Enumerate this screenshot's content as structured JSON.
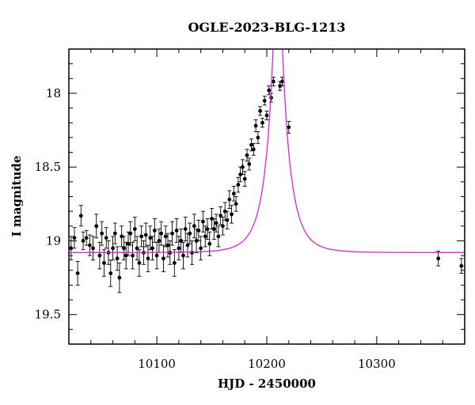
{
  "chart_data": {
    "type": "scatter",
    "title": "OGLE-2023-BLG-1213",
    "xlabel": "HJD - 2450000",
    "ylabel": "I magnitude",
    "xlim": [
      10020,
      10380
    ],
    "ylim": [
      19.7,
      17.7
    ],
    "y_inverted": true,
    "xticks_major": [
      10100,
      10200,
      10300
    ],
    "xtick_labels": [
      "10100",
      "10200",
      "10300"
    ],
    "yticks_major": [
      18,
      18.5,
      19,
      19.5
    ],
    "ytick_labels": [
      "18",
      "18.5",
      "19",
      "19.5"
    ],
    "grid": false,
    "legend": "none",
    "colors": {
      "data": "#000000",
      "model": "#e020e0",
      "frame": "#000000"
    },
    "model": {
      "name": "",
      "t0": 10210,
      "u0": 0.14,
      "tE": 17,
      "baseline_mag": 19.08,
      "baseline_unlensed_mag": 19.08
    },
    "series": [
      {
        "kind": "points_with_errors",
        "x": [
          10022,
          10025,
          10028,
          10031,
          10033,
          10036,
          10039,
          10042,
          10045,
          10048,
          10050,
          10052,
          10054,
          10056,
          10058,
          10060,
          10062,
          10064,
          10066,
          10068,
          10070,
          10072,
          10074,
          10076,
          10078,
          10080,
          10082,
          10084,
          10086,
          10088,
          10090,
          10092,
          10094,
          10096,
          10098,
          10100,
          10102,
          10104,
          10106,
          10108,
          10110,
          10112,
          10114,
          10116,
          10118,
          10120,
          10122,
          10124,
          10126,
          10128,
          10130,
          10132,
          10134,
          10136,
          10138,
          10140,
          10142,
          10144,
          10146,
          10148,
          10150,
          10152,
          10154,
          10156,
          10158,
          10160,
          10162,
          10164,
          10166,
          10168,
          10170,
          10172,
          10174,
          10176,
          10178,
          10180,
          10182,
          10184,
          10186,
          10188,
          10190,
          10192,
          10194,
          10196,
          10198,
          10200,
          10202,
          10204,
          10206,
          10212,
          10214,
          10220,
          10356,
          10377
        ],
        "y": [
          19.05,
          18.98,
          19.22,
          18.83,
          19.0,
          18.98,
          19.03,
          19.05,
          18.9,
          19.1,
          18.95,
          19.15,
          18.98,
          19.08,
          19.22,
          19.05,
          18.95,
          19.12,
          19.25,
          18.97,
          19.05,
          19.1,
          19.02,
          18.95,
          19.1,
          18.92,
          19.05,
          19.15,
          18.97,
          19.08,
          18.96,
          19.12,
          18.98,
          19.05,
          18.93,
          19.1,
          19.0,
          18.95,
          19.12,
          18.97,
          19.03,
          19.08,
          18.95,
          19.15,
          18.93,
          19.05,
          19.0,
          19.1,
          18.92,
          19.03,
          18.95,
          19.08,
          18.9,
          19.0,
          18.93,
          19.05,
          18.87,
          18.97,
          18.92,
          19.02,
          18.85,
          18.92,
          18.88,
          18.97,
          18.83,
          18.9,
          18.8,
          18.86,
          18.72,
          18.82,
          18.68,
          18.75,
          18.62,
          18.55,
          18.5,
          18.58,
          18.42,
          18.48,
          18.35,
          18.38,
          18.22,
          18.3,
          18.12,
          18.2,
          18.05,
          18.15,
          17.98,
          18.03,
          17.92,
          17.95,
          17.92,
          18.23,
          19.12,
          19.17
        ],
        "yerr": [
          0.08,
          0.07,
          0.08,
          0.07,
          0.06,
          0.05,
          0.07,
          0.08,
          0.08,
          0.09,
          0.08,
          0.09,
          0.07,
          0.08,
          0.09,
          0.08,
          0.07,
          0.08,
          0.1,
          0.07,
          0.08,
          0.09,
          0.08,
          0.08,
          0.09,
          0.08,
          0.08,
          0.09,
          0.07,
          0.08,
          0.08,
          0.09,
          0.08,
          0.08,
          0.08,
          0.09,
          0.08,
          0.08,
          0.09,
          0.07,
          0.08,
          0.08,
          0.08,
          0.09,
          0.08,
          0.08,
          0.08,
          0.09,
          0.08,
          0.08,
          0.07,
          0.08,
          0.08,
          0.08,
          0.07,
          0.08,
          0.07,
          0.07,
          0.07,
          0.08,
          0.07,
          0.07,
          0.06,
          0.07,
          0.06,
          0.06,
          0.06,
          0.06,
          0.06,
          0.06,
          0.05,
          0.05,
          0.05,
          0.05,
          0.05,
          0.05,
          0.04,
          0.04,
          0.04,
          0.04,
          0.04,
          0.04,
          0.03,
          0.03,
          0.03,
          0.03,
          0.03,
          0.03,
          0.03,
          0.03,
          0.03,
          0.04,
          0.05,
          0.05
        ]
      }
    ]
  }
}
